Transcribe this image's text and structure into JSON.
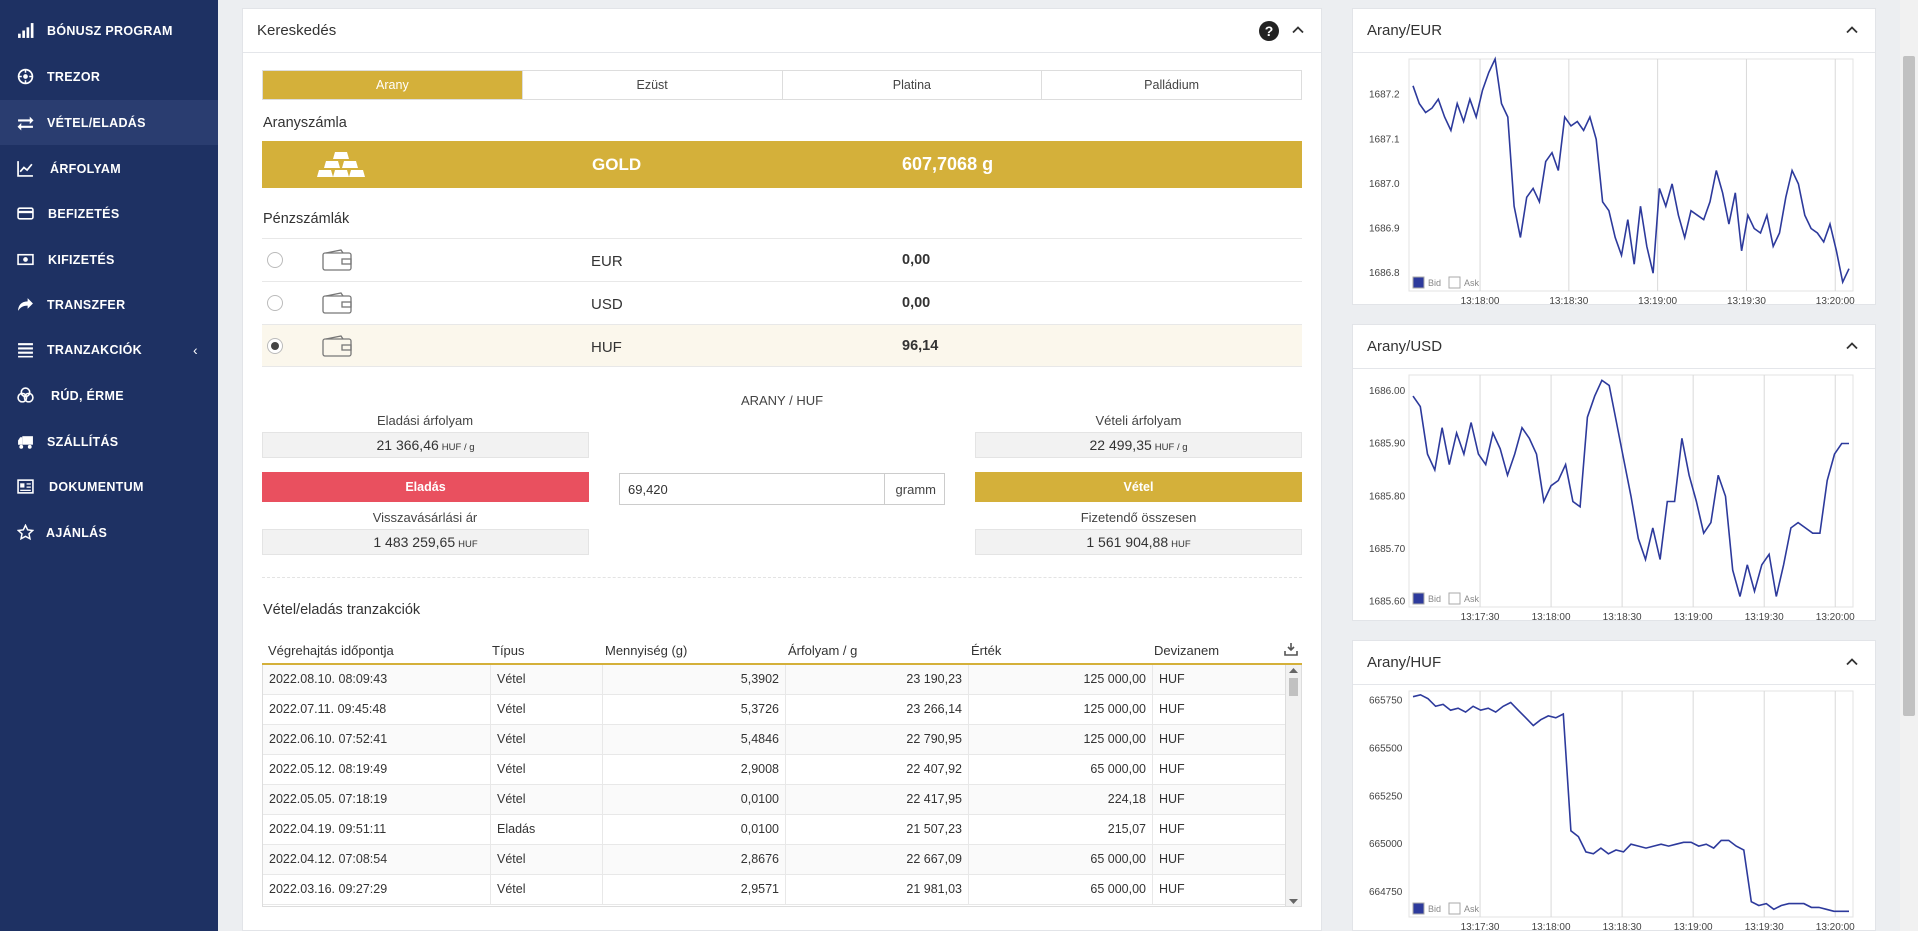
{
  "sidebar": {
    "items": [
      {
        "label": "BÓNUSZ PROGRAM",
        "icon": "signal-bars-icon"
      },
      {
        "label": "TREZOR",
        "icon": "vault-icon"
      },
      {
        "label": "VÉTEL/ELADÁS",
        "icon": "exchange-arrows-icon",
        "active": true
      },
      {
        "label": "ÁRFOLYAM",
        "icon": "line-chart-icon"
      },
      {
        "label": "BEFIZETÉS",
        "icon": "credit-card-icon"
      },
      {
        "label": "KIFIZETÉS",
        "icon": "cash-icon"
      },
      {
        "label": "TRANSZFER",
        "icon": "share-arrow-icon"
      },
      {
        "label": "TRANZAKCIÓK",
        "icon": "list-icon",
        "caret": "‹"
      },
      {
        "label": "RÚD, ÉRME",
        "icon": "coins-icon"
      },
      {
        "label": "SZÁLLÍTÁS",
        "icon": "truck-icon"
      },
      {
        "label": "DOKUMENTUM",
        "icon": "document-icon"
      },
      {
        "label": "AJÁNLÁS",
        "icon": "star-icon"
      }
    ]
  },
  "trading": {
    "title": "Kereskedés",
    "help": "?",
    "tabs": [
      "Arany",
      "Ezüst",
      "Platina",
      "Palládium"
    ],
    "gold_account_label": "Aranyszámla",
    "gold_name": "GOLD",
    "gold_value": "607,7068 g",
    "money_accounts_label": "Pénzszámlák",
    "accounts": [
      {
        "currency": "EUR",
        "value": "0,00",
        "selected": false
      },
      {
        "currency": "USD",
        "value": "0,00",
        "selected": false
      },
      {
        "currency": "HUF",
        "value": "96,14",
        "selected": true
      }
    ],
    "pair": "ARANY / HUF",
    "sell_rate_label": "Eladási árfolyam",
    "sell_rate": "21 366,46",
    "rate_unit": "HUF / g",
    "sell_button": "Eladás",
    "buyback_label": "Visszavásárlási ár",
    "buyback_value": "1 483 259,65",
    "currency_unit": "HUF",
    "quantity": "69,420",
    "quantity_unit": "gramm",
    "buy_rate_label": "Vételi árfolyam",
    "buy_rate": "22 499,35",
    "buy_button": "Vétel",
    "payable_label": "Fizetendő összesen",
    "payable_value": "1 561 904,88"
  },
  "transactions": {
    "title": "Vétel/eladás tranzakciók",
    "columns": [
      "Végrehajtás időpontja",
      "Típus",
      "Mennyiség (g)",
      "Árfolyam / g",
      "Érték",
      "Devizanem"
    ],
    "rows": [
      [
        "2022.08.10. 08:09:43",
        "Vétel",
        "5,3902",
        "23 190,23",
        "125 000,00",
        "HUF"
      ],
      [
        "2022.07.11. 09:45:48",
        "Vétel",
        "5,3726",
        "23 266,14",
        "125 000,00",
        "HUF"
      ],
      [
        "2022.06.10. 07:52:41",
        "Vétel",
        "5,4846",
        "22 790,95",
        "125 000,00",
        "HUF"
      ],
      [
        "2022.05.12. 08:19:49",
        "Vétel",
        "2,9008",
        "22 407,92",
        "65 000,00",
        "HUF"
      ],
      [
        "2022.05.05. 07:18:19",
        "Vétel",
        "0,0100",
        "22 417,95",
        "224,18",
        "HUF"
      ],
      [
        "2022.04.19. 09:51:11",
        "Eladás",
        "0,0100",
        "21 507,23",
        "215,07",
        "HUF"
      ],
      [
        "2022.04.12. 07:08:54",
        "Vétel",
        "2,8676",
        "22 667,09",
        "65 000,00",
        "HUF"
      ],
      [
        "2022.03.16. 09:27:29",
        "Vétel",
        "2,9571",
        "21 981,03",
        "65 000,00",
        "HUF"
      ]
    ]
  },
  "chart_data": [
    {
      "type": "line",
      "title": "Arany/EUR",
      "xticks": [
        "13:18:00",
        "13:18:30",
        "13:19:00",
        "13:19:30",
        "13:20:00"
      ],
      "yticks": [
        "1687.2",
        "1687.1",
        "1687.0",
        "1686.9",
        "1686.8"
      ],
      "ylim": [
        1686.76,
        1687.28
      ],
      "legend": [
        "Bid",
        "Ask"
      ],
      "series": [
        {
          "name": "Bid",
          "color": "#2d3a9c",
          "values": [
            1687.22,
            1687.18,
            1687.16,
            1687.17,
            1687.19,
            1687.15,
            1687.12,
            1687.18,
            1687.14,
            1687.19,
            1687.15,
            1687.21,
            1687.25,
            1687.28,
            1687.18,
            1687.15,
            1686.95,
            1686.88,
            1686.97,
            1686.99,
            1686.96,
            1687.05,
            1687.07,
            1687.03,
            1687.15,
            1687.13,
            1687.14,
            1687.12,
            1687.15,
            1687.1,
            1686.96,
            1686.94,
            1686.88,
            1686.84,
            1686.92,
            1686.82,
            1686.95,
            1686.86,
            1686.8,
            1686.99,
            1686.95,
            1687.0,
            1686.93,
            1686.88,
            1686.94,
            1686.93,
            1686.92,
            1686.96,
            1687.03,
            1686.98,
            1686.91,
            1686.98,
            1686.85,
            1686.93,
            1686.9,
            1686.89,
            1686.93,
            1686.86,
            1686.89,
            1686.97,
            1687.03,
            1687.0,
            1686.93,
            1686.9,
            1686.89,
            1686.87,
            1686.91,
            1686.85,
            1686.78,
            1686.81
          ]
        }
      ]
    },
    {
      "type": "line",
      "title": "Arany/USD",
      "xticks": [
        "13:17:30",
        "13:18:00",
        "13:18:30",
        "13:19:00",
        "13:19:30",
        "13:20:00"
      ],
      "yticks": [
        "1686.00",
        "1685.90",
        "1685.80",
        "1685.70",
        "1685.60"
      ],
      "ylim": [
        1685.59,
        1686.03
      ],
      "legend": [
        "Bid",
        "Ask"
      ],
      "series": [
        {
          "name": "Bid",
          "color": "#2d3a9c",
          "values": [
            1685.99,
            1685.97,
            1685.88,
            1685.85,
            1685.93,
            1685.86,
            1685.92,
            1685.88,
            1685.94,
            1685.88,
            1685.86,
            1685.92,
            1685.89,
            1685.84,
            1685.88,
            1685.93,
            1685.91,
            1685.88,
            1685.79,
            1685.82,
            1685.83,
            1685.86,
            1685.79,
            1685.78,
            1685.95,
            1685.99,
            1686.02,
            1686.01,
            1685.94,
            1685.87,
            1685.8,
            1685.72,
            1685.68,
            1685.74,
            1685.68,
            1685.79,
            1685.79,
            1685.91,
            1685.84,
            1685.79,
            1685.73,
            1685.75,
            1685.84,
            1685.8,
            1685.66,
            1685.61,
            1685.67,
            1685.62,
            1685.67,
            1685.69,
            1685.61,
            1685.67,
            1685.74,
            1685.75,
            1685.74,
            1685.73,
            1685.73,
            1685.83,
            1685.88,
            1685.9,
            1685.9
          ]
        }
      ]
    },
    {
      "type": "line",
      "title": "Arany/HUF",
      "xticks": [
        "13:17:30",
        "13:18:00",
        "13:18:30",
        "13:19:00",
        "13:19:30",
        "13:20:00"
      ],
      "yticks": [
        "665750",
        "665500",
        "665250",
        "665000",
        "664750"
      ],
      "ylim": [
        664620,
        665800
      ],
      "legend": [
        "Bid",
        "Ask"
      ],
      "series": [
        {
          "name": "Bid",
          "color": "#2d3a9c",
          "values": [
            665770,
            665780,
            665760,
            665720,
            665730,
            665700,
            665710,
            665690,
            665720,
            665700,
            665710,
            665690,
            665720,
            665740,
            665700,
            665660,
            665620,
            665650,
            665670,
            665660,
            665680,
            665070,
            665040,
            664960,
            664950,
            664980,
            664950,
            664970,
            664960,
            665000,
            664990,
            664980,
            664990,
            665000,
            664990,
            665000,
            665010,
            665010,
            664990,
            665000,
            664980,
            665020,
            665020,
            664990,
            664970,
            664700,
            664680,
            664690,
            664660,
            664680,
            664690,
            664690,
            664690,
            664670,
            664670,
            664660,
            664650,
            664650,
            664650
          ]
        }
      ]
    }
  ]
}
